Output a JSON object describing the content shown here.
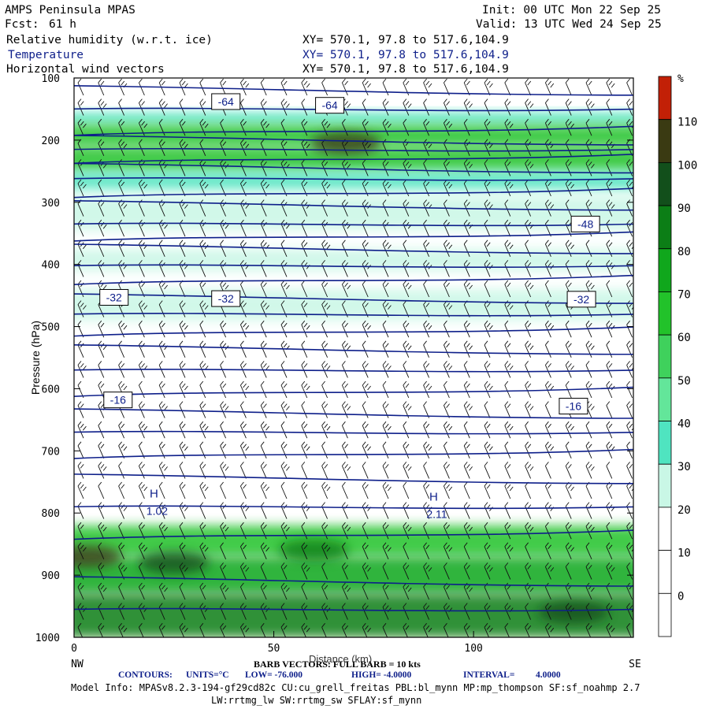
{
  "header": {
    "model": "AMPS Peninsula MPAS",
    "init": "Init: 00 UTC Mon 22 Sep 25",
    "fcst_label": "Fcst:",
    "fcst_value": "61 h",
    "valid": "Valid: 13 UTC Wed 24 Sep 25",
    "fields": [
      {
        "name": "Relative humidity (w.r.t. ice)",
        "xy": "XY= 570.1, 97.8 to 517.6,104.9"
      },
      {
        "name": "Temperature",
        "xy": "XY= 570.1, 97.8 to 517.6,104.9"
      },
      {
        "name": "Horizontal wind vectors",
        "xy": "XY= 570.1, 97.8 to 517.6,104.9"
      }
    ]
  },
  "chart_data": {
    "type": "heatmap",
    "title": "Relative humidity (w.r.t. ice), Temperature, Horizontal wind vectors",
    "xlabel": "Distance (km)",
    "ylabel": "Pressure (hPa)",
    "x_ticks": [
      0,
      50,
      100
    ],
    "xlim": [
      0,
      140
    ],
    "y_ticks": [
      100,
      200,
      300,
      400,
      500,
      600,
      700,
      800,
      900,
      1000
    ],
    "ylim": [
      1000,
      100
    ],
    "x_end_labels": {
      "left": "NW",
      "right": "SE"
    },
    "colorbar": {
      "unit": "%",
      "labels": [
        0,
        10,
        20,
        30,
        40,
        50,
        60,
        70,
        80,
        90,
        100,
        110
      ],
      "colors": [
        "#ffffff",
        "#ffffff",
        "#ffffff",
        "#c9f7e6",
        "#4fe4c0",
        "#63e69a",
        "#3fd15c",
        "#22c22a",
        "#10a71c",
        "#0c7e16",
        "#124f1b",
        "#3a3a12",
        "#c22006"
      ]
    },
    "rh_bands": [
      {
        "p": [
          100,
          150
        ],
        "rh": 25
      },
      {
        "p": [
          155,
          175
        ],
        "rh": 45
      },
      {
        "p": [
          175,
          210
        ],
        "rh": 78
      },
      {
        "p": [
          210,
          250
        ],
        "rh": 70
      },
      {
        "p": [
          250,
          280
        ],
        "rh": 42
      },
      {
        "p": [
          290,
          345
        ],
        "rh": 36
      },
      {
        "p": [
          375,
          410
        ],
        "rh": 35
      },
      {
        "p": [
          440,
          490
        ],
        "rh": 38
      },
      {
        "p": [
          820,
          870
        ],
        "rh": 75
      },
      {
        "p": [
          870,
          930
        ],
        "rh": 85
      },
      {
        "p": [
          930,
          1000
        ],
        "rh": 95
      }
    ],
    "rh_maxima": [
      {
        "x": 68,
        "p": 205,
        "rh": 110
      },
      {
        "x": 3,
        "p": 870,
        "rh": 110
      },
      {
        "x": 25,
        "p": 880,
        "rh": 100
      },
      {
        "x": 60,
        "p": 860,
        "rh": 95
      },
      {
        "x": 125,
        "p": 960,
        "rh": 100
      }
    ],
    "temperature_contours": {
      "units": "°C",
      "interval": 4,
      "low": -76,
      "high": -4,
      "labels": [
        {
          "x": 38,
          "p": 138,
          "value": -64
        },
        {
          "x": 64,
          "p": 144,
          "value": -64
        },
        {
          "x": 128,
          "p": 335,
          "value": -48
        },
        {
          "x": 10,
          "p": 453,
          "value": -32
        },
        {
          "x": 38,
          "p": 455,
          "value": -32
        },
        {
          "x": 127,
          "p": 456,
          "value": -32
        },
        {
          "x": 11,
          "p": 618,
          "value": -16
        },
        {
          "x": 125,
          "p": 628,
          "value": -16
        }
      ],
      "highs": [
        {
          "x": 20,
          "p": 775,
          "label": "H",
          "value": "1.02"
        },
        {
          "x": 90,
          "p": 780,
          "label": "H",
          "value": "2.11"
        }
      ]
    },
    "wind_barbs": {
      "note": "BARB VECTORS: FULL BARB = 10 kts"
    }
  },
  "footer": {
    "barb": "BARB VECTORS: FULL BARB = 10 kts",
    "xlabel_overlap": "Distance (km)",
    "contours_prefix": "CONTOURS:",
    "units": "UNITS=°C",
    "low": "LOW= -76.000",
    "high": "HIGH= -4.0000",
    "interval": "INTERVAL=",
    "interval_value": "4.0000",
    "model_info": "Model Info: MPASv8.2.3-194-gf29cd82c CU:cu_grell_freitas PBL:bl_mynn MP:mp_thompson SF:sf_noahmp 2.7",
    "model_info2": "LW:rrtmg_lw SW:rrtmg_sw SFLAY:sf_mynn"
  }
}
